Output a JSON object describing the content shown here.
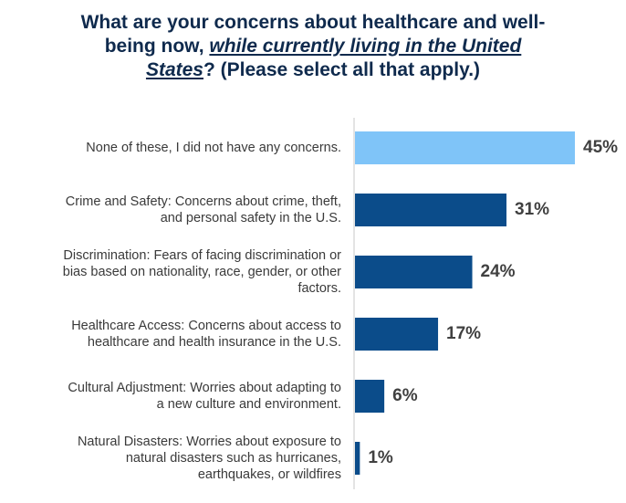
{
  "title": {
    "line1": "What are your concerns about healthcare and well-",
    "line2_prefix": "being now, ",
    "line2_em": "while currently living in the United",
    "line3_em": "States",
    "line3_suffix": "? (Please select all that apply.)"
  },
  "colors": {
    "highlight": "#7fc4f8",
    "primary": "#0b4c8a",
    "axis": "#c8c8c8"
  },
  "chart_data": {
    "type": "bar",
    "orientation": "horizontal",
    "categories": [
      "None of these, I did not have any concerns.",
      "Crime and Safety: Concerns about crime, theft,\nand personal safety in the U.S.",
      "Discrimination: Fears of facing discrimination or\nbias based on nationality, race, gender, or other\nfactors.",
      "Healthcare Access: Concerns about access to\nhealthcare and health insurance in the U.S.",
      "Cultural Adjustment: Worries about adapting to\na new culture and environment.",
      "Natural Disasters: Worries about exposure to\nnatural disasters such as hurricanes,\nearthquakes, or wildfires"
    ],
    "values": [
      45,
      31,
      24,
      17,
      6,
      1
    ],
    "value_labels": [
      "45%",
      "31%",
      "24%",
      "17%",
      "6%",
      "1%"
    ],
    "highlight_index": 0,
    "xlim": [
      0,
      45
    ],
    "grid": false
  }
}
